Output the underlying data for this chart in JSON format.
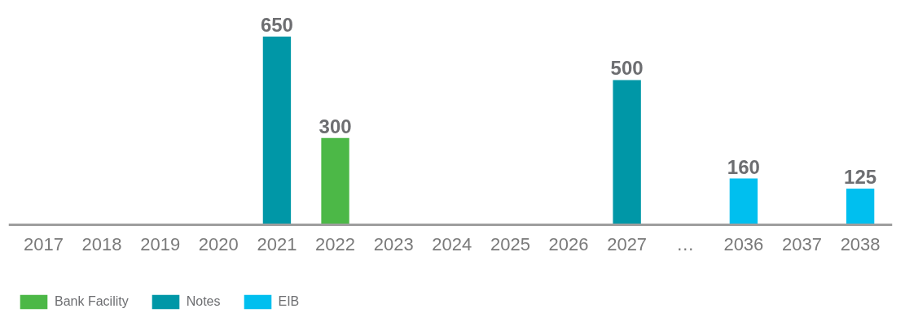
{
  "chart_data": {
    "type": "bar",
    "data_labels": true,
    "legend": "bottom left",
    "categories": [
      "2017",
      "2018",
      "2019",
      "2020",
      "2021",
      "2022",
      "2023",
      "2024",
      "2025",
      "2026",
      "2027",
      "…",
      "2036",
      "2037",
      "2038"
    ],
    "series": [
      {
        "name": "Bank Facility",
        "color": "#4cb847",
        "values": [
          null,
          null,
          null,
          null,
          null,
          300,
          null,
          null,
          null,
          null,
          null,
          null,
          null,
          null,
          null
        ]
      },
      {
        "name": "Notes",
        "color": "#0097a7",
        "values": [
          null,
          null,
          null,
          null,
          650,
          null,
          null,
          null,
          null,
          null,
          500,
          null,
          null,
          null,
          null
        ]
      },
      {
        "name": "EIB",
        "color": "#00bfef",
        "values": [
          null,
          null,
          null,
          null,
          null,
          null,
          null,
          null,
          null,
          null,
          null,
          null,
          160,
          null,
          125
        ]
      }
    ]
  }
}
